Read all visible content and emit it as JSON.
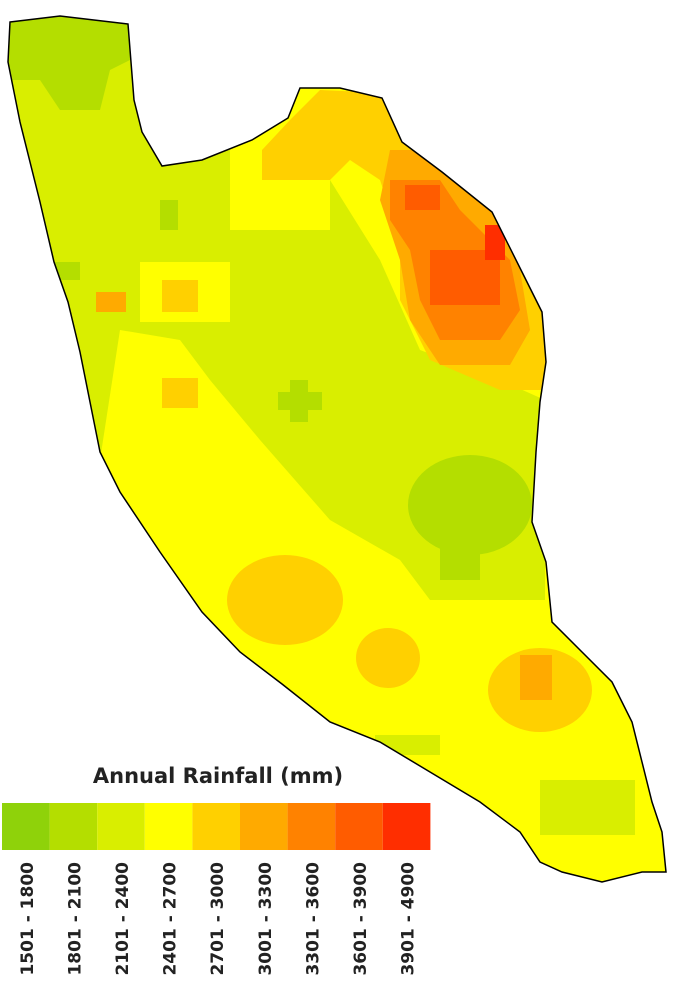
{
  "legend": {
    "title": "Annual Rainfall (mm)",
    "classes": [
      {
        "label": "1501 - 1800",
        "color": "#8fd20a"
      },
      {
        "label": "1801 - 2100",
        "color": "#b4de00"
      },
      {
        "label": "2101 - 2400",
        "color": "#d9ee00"
      },
      {
        "label": "2401 - 2700",
        "color": "#ffff00"
      },
      {
        "label": "2701 - 3000",
        "color": "#ffd000"
      },
      {
        "label": "3001 - 3300",
        "color": "#ffaa00"
      },
      {
        "label": "3301 - 3600",
        "color": "#ff8200"
      },
      {
        "label": "3601 - 3900",
        "color": "#ff5c00"
      },
      {
        "label": "3901 - 4900",
        "color": "#ff2e00"
      }
    ]
  }
}
